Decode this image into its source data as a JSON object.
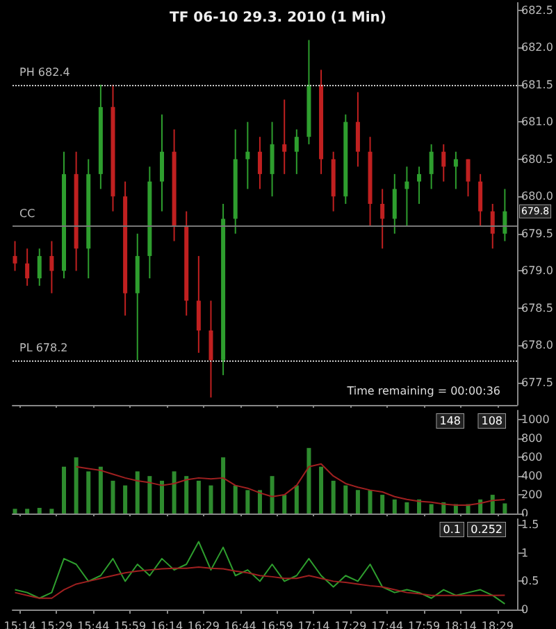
{
  "chart_data": [
    {
      "type": "candlestick",
      "title": "TF 06-10 29.3. 2010 (1 Min)",
      "colors": [
        "#c02020",
        "#c02020",
        "#2e9e2e",
        "#c02020",
        "#2e9e2e",
        "#c02020",
        "#2e9e2e",
        "#2e9e2e",
        "#c02020",
        "#c02020",
        "#2e9e2e",
        "#2e9e2e",
        "#2e9e2e",
        "#c02020",
        "#c02020",
        "#c02020",
        "#c02020",
        "#2e9e2e",
        "#2e9e2e",
        "#2e9e2e",
        "#c02020",
        "#2e9e2e",
        "#c02020",
        "#2e9e2e",
        "#2e9e2e",
        "#c02020",
        "#c02020",
        "#2e9e2e",
        "#c02020",
        "#c02020",
        "#c02020",
        "#2e9e2e",
        "#2e9e2e",
        "#2e9e2e",
        "#2e9e2e",
        "#c02020",
        "#2e9e2e",
        "#c02020",
        "#c02020",
        "#c02020",
        "#2e9e2e"
      ],
      "x": [
        "2010-03-29T15:12",
        "2010-03-29T15:17",
        "2010-03-29T15:22",
        "2010-03-29T15:27",
        "2010-03-29T15:32",
        "2010-03-29T15:37",
        "2010-03-29T15:42",
        "2010-03-29T15:47",
        "2010-03-29T15:52",
        "2010-03-29T15:57",
        "2010-03-29T16:02",
        "2010-03-29T16:07",
        "2010-03-29T16:12",
        "2010-03-29T16:17",
        "2010-03-29T16:22",
        "2010-03-29T16:27",
        "2010-03-29T16:32",
        "2010-03-29T16:37",
        "2010-03-29T16:42",
        "2010-03-29T16:47",
        "2010-03-29T16:52",
        "2010-03-29T16:57",
        "2010-03-29T17:02",
        "2010-03-29T17:07",
        "2010-03-29T17:12",
        "2010-03-29T17:17",
        "2010-03-29T17:22",
        "2010-03-29T17:27",
        "2010-03-29T17:32",
        "2010-03-29T17:37",
        "2010-03-29T17:42",
        "2010-03-29T17:47",
        "2010-03-29T17:52",
        "2010-03-29T17:57",
        "2010-03-29T18:02",
        "2010-03-29T18:07",
        "2010-03-29T18:12",
        "2010-03-29T18:17",
        "2010-03-29T18:22",
        "2010-03-29T18:27",
        "2010-03-29T18:32"
      ],
      "ohlc": [
        [
          679.2,
          679.4,
          679.0,
          679.1
        ],
        [
          679.1,
          679.3,
          678.8,
          678.9
        ],
        [
          678.9,
          679.3,
          678.8,
          679.2
        ],
        [
          679.2,
          679.4,
          678.7,
          679.0
        ],
        [
          679.0,
          680.6,
          678.9,
          680.3
        ],
        [
          680.3,
          680.6,
          679.0,
          679.3
        ],
        [
          679.3,
          680.5,
          678.9,
          680.3
        ],
        [
          680.3,
          681.5,
          680.1,
          681.2
        ],
        [
          681.2,
          681.5,
          679.8,
          680.0
        ],
        [
          680.0,
          680.2,
          678.4,
          678.7
        ],
        [
          678.7,
          679.5,
          677.8,
          679.2
        ],
        [
          679.2,
          680.4,
          678.9,
          680.2
        ],
        [
          680.2,
          681.1,
          679.8,
          680.6
        ],
        [
          680.6,
          680.9,
          679.4,
          679.6
        ],
        [
          679.6,
          679.8,
          678.4,
          678.6
        ],
        [
          678.6,
          679.2,
          677.9,
          678.2
        ],
        [
          678.2,
          678.6,
          677.3,
          677.8
        ],
        [
          677.8,
          679.9,
          677.6,
          679.7
        ],
        [
          679.7,
          680.9,
          679.5,
          680.5
        ],
        [
          680.5,
          681.0,
          680.1,
          680.6
        ],
        [
          680.6,
          680.8,
          680.1,
          680.3
        ],
        [
          680.3,
          681.0,
          680.0,
          680.7
        ],
        [
          680.7,
          681.3,
          680.3,
          680.6
        ],
        [
          680.6,
          680.9,
          680.3,
          680.8
        ],
        [
          680.8,
          682.1,
          680.7,
          681.5
        ],
        [
          681.5,
          681.7,
          680.3,
          680.5
        ],
        [
          680.5,
          680.6,
          679.8,
          680.0
        ],
        [
          680.0,
          681.1,
          679.9,
          681.0
        ],
        [
          681.0,
          681.4,
          680.4,
          680.6
        ],
        [
          680.6,
          680.8,
          679.6,
          679.9
        ],
        [
          679.9,
          680.1,
          679.3,
          679.7
        ],
        [
          679.7,
          680.3,
          679.5,
          680.1
        ],
        [
          680.1,
          680.4,
          679.6,
          680.2
        ],
        [
          680.2,
          680.4,
          679.9,
          680.3
        ],
        [
          680.3,
          680.7,
          680.1,
          680.6
        ],
        [
          680.6,
          680.7,
          680.2,
          680.4
        ],
        [
          680.4,
          680.6,
          680.1,
          680.5
        ],
        [
          680.5,
          680.5,
          680.0,
          680.2
        ],
        [
          680.2,
          680.3,
          679.6,
          679.8
        ],
        [
          679.8,
          679.9,
          679.3,
          679.5
        ],
        [
          679.5,
          680.1,
          679.4,
          679.8
        ]
      ],
      "xlim": [
        "2010-03-29T15:11",
        "2010-03-29T18:37"
      ],
      "xticks": [
        {
          "value": "2010-03-29T15:14",
          "label": null
        },
        {
          "value": "2010-03-29T15:29",
          "label": null
        },
        {
          "value": "2010-03-29T15:44",
          "label": null
        },
        {
          "value": "2010-03-29T15:59",
          "label": null
        },
        {
          "value": "2010-03-29T16:14",
          "label": null
        },
        {
          "value": "2010-03-29T16:29",
          "label": null
        },
        {
          "value": "2010-03-29T16:44",
          "label": null
        },
        {
          "value": "2010-03-29T16:59",
          "label": null
        },
        {
          "value": "2010-03-29T17:14",
          "label": null
        },
        {
          "value": "2010-03-29T17:29",
          "label": null
        },
        {
          "value": "2010-03-29T17:44",
          "label": null
        },
        {
          "value": "2010-03-29T17:59",
          "label": null
        },
        {
          "value": "2010-03-29T18:14",
          "label": null
        },
        {
          "value": "2010-03-29T18:29",
          "label": null
        }
      ],
      "ylim": [
        677.2,
        682.6
      ],
      "yticks": [
        {
          "value": 677.5,
          "label": "677.5"
        },
        {
          "value": 678,
          "label": "678.0"
        },
        {
          "value": 678.5,
          "label": "678.5"
        },
        {
          "value": 679,
          "label": "679.0"
        },
        {
          "value": 679.5,
          "label": "679.5"
        },
        {
          "value": 680,
          "label": "680.0"
        },
        {
          "value": 680.5,
          "label": "680.5"
        },
        {
          "value": 681,
          "label": "681.0"
        },
        {
          "value": 681.5,
          "label": "681.5"
        },
        {
          "value": 682,
          "label": "682.0"
        },
        {
          "value": 682.5,
          "label": "682.5"
        }
      ],
      "tick_labels": "y",
      "ref_lines": [
        {
          "axis": "y",
          "value": 681.5,
          "label": "PH 682.4",
          "color": "#cccccc",
          "line_style": "dotted"
        },
        {
          "axis": "y",
          "value": 679.6,
          "label": "CC",
          "color": "#777777",
          "line_style": "solid"
        },
        {
          "axis": "y",
          "value": 677.8,
          "label": "PL 678.2",
          "color": "#cccccc",
          "line_style": "dotted"
        }
      ],
      "annotations": [
        {
          "text": "679.8",
          "x": "2010-03-29T18:32",
          "y": 679.8
        },
        "Time remaining = 00:00:36"
      ]
    },
    {
      "type": "bar",
      "x": [
        "2010-03-29T15:12",
        "2010-03-29T15:17",
        "2010-03-29T15:22",
        "2010-03-29T15:27",
        "2010-03-29T15:32",
        "2010-03-29T15:37",
        "2010-03-29T15:42",
        "2010-03-29T15:47",
        "2010-03-29T15:52",
        "2010-03-29T15:57",
        "2010-03-29T16:02",
        "2010-03-29T16:07",
        "2010-03-29T16:12",
        "2010-03-29T16:17",
        "2010-03-29T16:22",
        "2010-03-29T16:27",
        "2010-03-29T16:32",
        "2010-03-29T16:37",
        "2010-03-29T16:42",
        "2010-03-29T16:47",
        "2010-03-29T16:52",
        "2010-03-29T16:57",
        "2010-03-29T17:02",
        "2010-03-29T17:07",
        "2010-03-29T17:12",
        "2010-03-29T17:17",
        "2010-03-29T17:22",
        "2010-03-29T17:27",
        "2010-03-29T17:32",
        "2010-03-29T17:37",
        "2010-03-29T17:42",
        "2010-03-29T17:47",
        "2010-03-29T17:52",
        "2010-03-29T17:57",
        "2010-03-29T18:02",
        "2010-03-29T18:07",
        "2010-03-29T18:12",
        "2010-03-29T18:17",
        "2010-03-29T18:22",
        "2010-03-29T18:27",
        "2010-03-29T18:32"
      ],
      "series": [
        {
          "color": "#2e8b2e",
          "values": [
            50,
            50,
            60,
            50,
            500,
            600,
            450,
            500,
            350,
            300,
            450,
            400,
            350,
            450,
            400,
            350,
            300,
            600,
            300,
            250,
            250,
            400,
            200,
            300,
            700,
            500,
            350,
            300,
            250,
            250,
            200,
            150,
            120,
            150,
            100,
            120,
            100,
            100,
            150,
            200,
            108
          ]
        },
        {
          "type": "line",
          "color": "#a02020",
          "values": [
            null,
            null,
            null,
            null,
            null,
            500,
            480,
            460,
            420,
            380,
            350,
            330,
            300,
            320,
            360,
            380,
            370,
            380,
            300,
            270,
            220,
            180,
            200,
            300,
            500,
            530,
            400,
            320,
            280,
            250,
            230,
            180,
            150,
            130,
            120,
            100,
            90,
            90,
            110,
            140,
            148
          ]
        }
      ],
      "xlim": [
        "2010-03-29T15:11",
        "2010-03-29T18:37"
      ],
      "xticks": [
        {
          "value": "2010-03-29T15:14",
          "label": null
        },
        {
          "value": "2010-03-29T15:29",
          "label": null
        },
        {
          "value": "2010-03-29T15:44",
          "label": null
        },
        {
          "value": "2010-03-29T15:59",
          "label": null
        },
        {
          "value": "2010-03-29T16:14",
          "label": null
        },
        {
          "value": "2010-03-29T16:29",
          "label": null
        },
        {
          "value": "2010-03-29T16:44",
          "label": null
        },
        {
          "value": "2010-03-29T16:59",
          "label": null
        },
        {
          "value": "2010-03-29T17:14",
          "label": null
        },
        {
          "value": "2010-03-29T17:29",
          "label": null
        },
        {
          "value": "2010-03-29T17:44",
          "label": null
        },
        {
          "value": "2010-03-29T17:59",
          "label": null
        },
        {
          "value": "2010-03-29T18:14",
          "label": null
        },
        {
          "value": "2010-03-29T18:29",
          "label": null
        }
      ],
      "ylim": [
        0,
        1100
      ],
      "yticks": [
        0,
        200,
        400,
        600,
        800,
        1000
      ],
      "tick_labels": "y",
      "marker": "none",
      "annotations": [
        "108",
        "148"
      ]
    },
    {
      "type": "line",
      "x": [
        "2010-03-29T15:12",
        "2010-03-29T15:17",
        "2010-03-29T15:22",
        "2010-03-29T15:27",
        "2010-03-29T15:32",
        "2010-03-29T15:37",
        "2010-03-29T15:42",
        "2010-03-29T15:47",
        "2010-03-29T15:52",
        "2010-03-29T15:57",
        "2010-03-29T16:02",
        "2010-03-29T16:07",
        "2010-03-29T16:12",
        "2010-03-29T16:17",
        "2010-03-29T16:22",
        "2010-03-29T16:27",
        "2010-03-29T16:32",
        "2010-03-29T16:37",
        "2010-03-29T16:42",
        "2010-03-29T16:47",
        "2010-03-29T16:52",
        "2010-03-29T16:57",
        "2010-03-29T17:02",
        "2010-03-29T17:07",
        "2010-03-29T17:12",
        "2010-03-29T17:17",
        "2010-03-29T17:22",
        "2010-03-29T17:27",
        "2010-03-29T17:32",
        "2010-03-29T17:37",
        "2010-03-29T17:42",
        "2010-03-29T17:47",
        "2010-03-29T17:52",
        "2010-03-29T17:57",
        "2010-03-29T18:02",
        "2010-03-29T18:07",
        "2010-03-29T18:12",
        "2010-03-29T18:17",
        "2010-03-29T18:22",
        "2010-03-29T18:27",
        "2010-03-29T18:32"
      ],
      "series": [
        {
          "color": "#2e9e2e",
          "values": [
            0.35,
            0.3,
            0.2,
            0.3,
            0.9,
            0.8,
            0.5,
            0.6,
            0.9,
            0.5,
            0.8,
            0.6,
            0.9,
            0.7,
            0.8,
            1.2,
            0.7,
            1.1,
            0.6,
            0.7,
            0.5,
            0.8,
            0.5,
            0.6,
            0.9,
            0.6,
            0.4,
            0.6,
            0.5,
            0.8,
            0.4,
            0.3,
            0.35,
            0.3,
            0.2,
            0.35,
            0.25,
            0.3,
            0.35,
            0.25,
            0.1
          ]
        },
        {
          "color": "#a02020",
          "values": [
            0.3,
            0.25,
            0.2,
            0.2,
            0.35,
            0.45,
            0.5,
            0.55,
            0.6,
            0.65,
            0.68,
            0.7,
            0.72,
            0.73,
            0.73,
            0.75,
            0.73,
            0.72,
            0.68,
            0.65,
            0.6,
            0.58,
            0.55,
            0.55,
            0.6,
            0.55,
            0.5,
            0.48,
            0.45,
            0.42,
            0.4,
            0.35,
            0.3,
            0.28,
            0.25,
            0.25,
            0.25,
            0.25,
            0.25,
            0.25,
            0.252
          ]
        }
      ],
      "xlim": [
        "2010-03-29T15:11",
        "2010-03-29T18:37"
      ],
      "xticks": [
        {
          "value": "2010-03-29T15:14",
          "label": "15:14"
        },
        {
          "value": "2010-03-29T15:29",
          "label": "15:29"
        },
        {
          "value": "2010-03-29T15:44",
          "label": "15:44"
        },
        {
          "value": "2010-03-29T15:59",
          "label": "15:59"
        },
        {
          "value": "2010-03-29T16:14",
          "label": "16:14"
        },
        {
          "value": "2010-03-29T16:29",
          "label": "16:29"
        },
        {
          "value": "2010-03-29T16:44",
          "label": "16:44"
        },
        {
          "value": "2010-03-29T16:59",
          "label": "16:59"
        },
        {
          "value": "2010-03-29T17:14",
          "label": "17:14"
        },
        {
          "value": "2010-03-29T17:29",
          "label": "17:29"
        },
        {
          "value": "2010-03-29T17:44",
          "label": "17:44"
        },
        {
          "value": "2010-03-29T17:59",
          "label": "17:59"
        },
        {
          "value": "2010-03-29T18:14",
          "label": "18:14"
        },
        {
          "value": "2010-03-29T18:29",
          "label": "18:29"
        }
      ],
      "ylim": [
        0,
        1.6
      ],
      "yticks": [
        0,
        0.5,
        1,
        1.5
      ],
      "marker": "none",
      "annotations": [
        "0.252",
        "0.1"
      ]
    }
  ]
}
